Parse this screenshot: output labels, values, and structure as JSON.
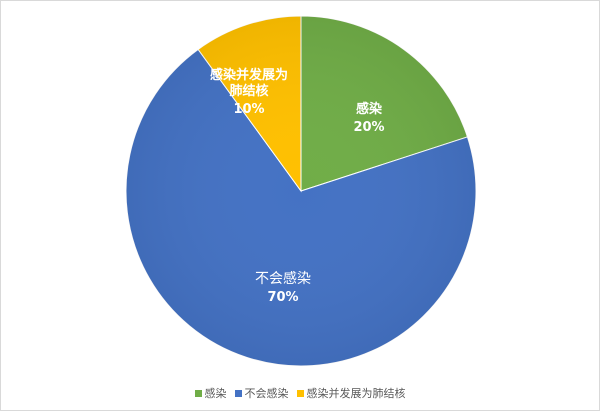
{
  "chart_data": {
    "type": "pie",
    "title": "",
    "categories": [
      "感染",
      "不会感染",
      "感染并发展为肺结核"
    ],
    "values": [
      20,
      70,
      10
    ],
    "data_labels": [
      "20%",
      "70%",
      "10%"
    ],
    "colors": [
      "#70ad47",
      "#4472c4",
      "#ffc000"
    ],
    "start_angle": "top, clockwise",
    "legend": "bottom"
  }
}
